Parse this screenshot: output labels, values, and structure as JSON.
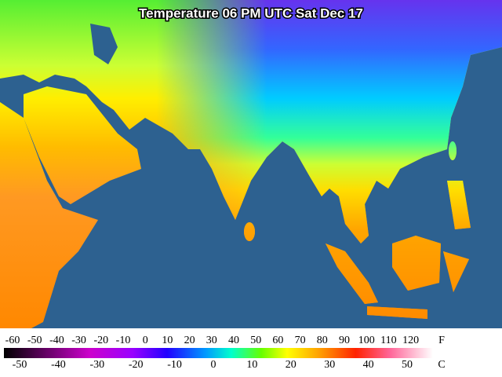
{
  "title": "Temperature 06 PM UTC Sat Dec 17",
  "scale": {
    "fahrenheit": {
      "unit": "F",
      "labels": [
        -60,
        -50,
        -40,
        -30,
        -20,
        -10,
        0,
        10,
        20,
        30,
        40,
        50,
        60,
        70,
        80,
        90,
        100,
        110,
        120
      ]
    },
    "celsius": {
      "unit": "C",
      "labels": [
        -50,
        -40,
        -30,
        -20,
        -10,
        0,
        10,
        20,
        30,
        40,
        50
      ]
    }
  }
}
